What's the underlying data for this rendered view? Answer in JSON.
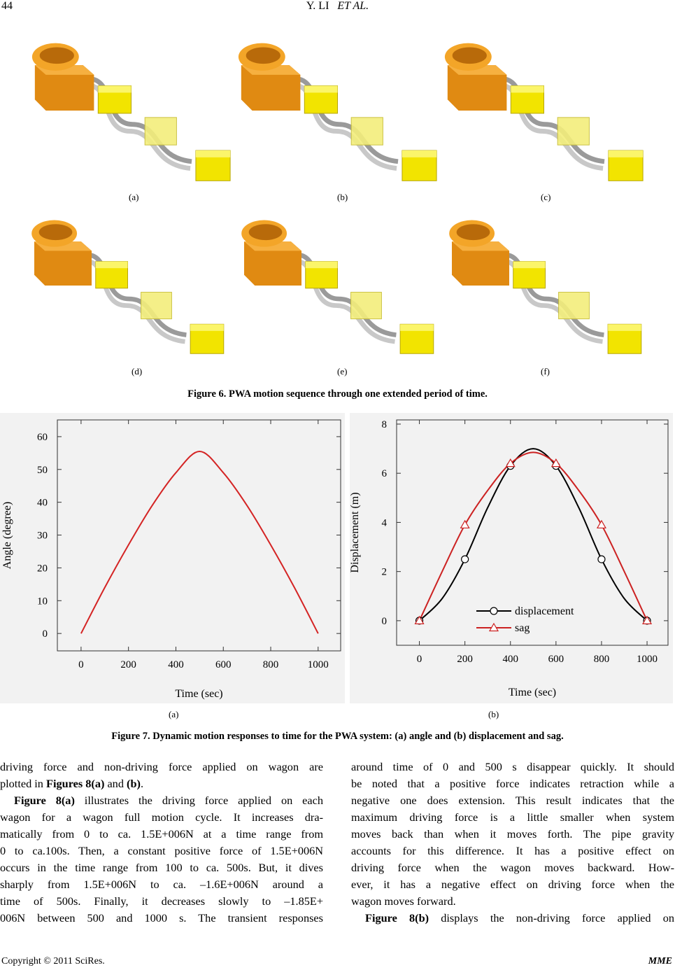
{
  "header": {
    "page_number": "44",
    "running_head": [
      "Y. LI",
      "ET AL."
    ]
  },
  "figure6": {
    "panels": [
      "(a)",
      "(b)",
      "(c)",
      "(d)",
      "(e)",
      "(f)"
    ],
    "caption": "Figure 6. PWA motion sequence through one extended period of time."
  },
  "figure7": {
    "panels": [
      "(a)",
      "(b)"
    ],
    "caption": "Figure 7. Dynamic motion responses to time for the PWA system: (a) angle and (b) displacement and sag."
  },
  "chart_data": [
    {
      "type": "line",
      "xlabel": "Time (sec)",
      "ylabel": "Angle (degree)",
      "x": [
        0,
        100,
        200,
        300,
        400,
        500,
        600,
        700,
        800,
        900,
        1000
      ],
      "values": [
        0,
        14,
        27,
        39,
        49,
        55.5,
        49,
        39,
        27,
        14,
        0
      ],
      "color": "#d42424",
      "xlim": [
        -100,
        1095
      ],
      "ylim": [
        -5.3,
        65.1
      ],
      "xticks": [
        0,
        200,
        400,
        600,
        800,
        1000
      ],
      "yticks": [
        0,
        10,
        20,
        30,
        40,
        50,
        60
      ]
    },
    {
      "type": "line",
      "xlabel": "Time (sec)",
      "ylabel": "Displacement (m)",
      "x": [
        0,
        100,
        200,
        300,
        400,
        500,
        600,
        700,
        800,
        900,
        1000
      ],
      "series": [
        {
          "name": "displacement",
          "color": "#000000",
          "marker": "circle",
          "values": [
            0,
            0.9,
            2.5,
            4.6,
            6.3,
            7.0,
            6.3,
            4.6,
            2.5,
            0.9,
            0
          ]
        },
        {
          "name": "sag",
          "color": "#cc2222",
          "marker": "triangle",
          "values": [
            0,
            2.0,
            3.9,
            5.3,
            6.4,
            6.85,
            6.4,
            5.3,
            3.9,
            2.0,
            0
          ]
        }
      ],
      "xlim": [
        -100,
        1092
      ],
      "ylim": [
        -1,
        8.17
      ],
      "xticks": [
        0,
        200,
        400,
        600,
        800,
        1000
      ],
      "yticks": [
        0,
        2,
        4,
        6,
        8
      ],
      "legend": "lower center"
    }
  ],
  "body": {
    "left": [
      [
        "driving force and non-driving force applied on wagon are"
      ],
      [
        "plotted in ",
        "Figures 8(a)",
        " and ",
        "(b)",
        "."
      ],
      [
        "Figure 8(a)",
        " illustrates the driving force applied on each"
      ],
      [
        "wagon for a wagon full motion cycle. It increases dra-"
      ],
      [
        "matically from 0 to ca. 1.5E+006N at a time range from"
      ],
      [
        "0 to ca.100s. Then, a constant positive force of 1.5E+006N"
      ],
      [
        "occurs in the time range from 100 to ca. 500s. But, it dives"
      ],
      [
        "sharply from 1.5E+006N to ca. –1.6E+006N around a"
      ],
      [
        "time of 500s. Finally, it decreases slowly to –1.85E+"
      ],
      [
        "006N between 500 and 1000 s. The transient responses"
      ]
    ],
    "right": [
      [
        "around time of 0 and 500 s disappear quickly. It should"
      ],
      [
        "be noted that a positive force indicates retraction while a"
      ],
      [
        "negative one does extension. This result indicates that the"
      ],
      [
        "maximum driving force is a little smaller when system"
      ],
      [
        "moves back than when it moves forth. The pipe gravity"
      ],
      [
        "accounts for this difference. It has a positive effect on"
      ],
      [
        "driving force when the wagon moves backward. How-"
      ],
      [
        "ever, it has a negative effect on driving force when the"
      ],
      [
        "wagon moves forward."
      ],
      [
        "Figure 8(b)",
        " displays the non-driving force applied on"
      ]
    ]
  },
  "footer": {
    "copyright": "Copyright © 2011 SciRes.",
    "journal": "MME"
  }
}
